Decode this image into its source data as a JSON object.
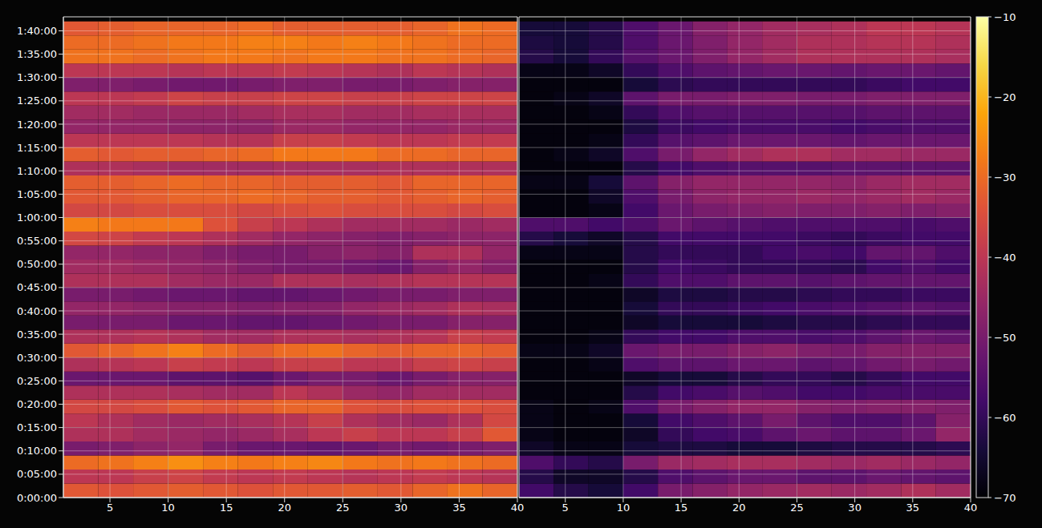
{
  "chart_data": [
    {
      "type": "heatmap",
      "grid": true,
      "xlim": [
        1,
        40
      ],
      "xticks": [
        5,
        10,
        15,
        20,
        25,
        30,
        35,
        40
      ],
      "ylim": [
        0,
        6180
      ],
      "yticks": [
        {
          "value": 0,
          "label": "0:00:00"
        },
        {
          "value": 300,
          "label": "0:05:00"
        },
        {
          "value": 600,
          "label": "0:10:00"
        },
        {
          "value": 900,
          "label": "0:15:00"
        },
        {
          "value": 1200,
          "label": "0:20:00"
        },
        {
          "value": 1500,
          "label": "0:25:00"
        },
        {
          "value": 1800,
          "label": "0:30:00"
        },
        {
          "value": 2100,
          "label": "0:35:00"
        },
        {
          "value": 2400,
          "label": "0:40:00"
        },
        {
          "value": 2700,
          "label": "0:45:00"
        },
        {
          "value": 3000,
          "label": "0:50:00"
        },
        {
          "value": 3300,
          "label": "0:55:00"
        },
        {
          "value": 3600,
          "label": "1:00:00"
        },
        {
          "value": 3900,
          "label": "1:05:00"
        },
        {
          "value": 4200,
          "label": "1:10:00"
        },
        {
          "value": 4500,
          "label": "1:15:00"
        },
        {
          "value": 4800,
          "label": "1:20:00"
        },
        {
          "value": 5100,
          "label": "1:25:00"
        },
        {
          "value": 5400,
          "label": "1:30:00"
        },
        {
          "value": 5700,
          "label": "1:35:00"
        },
        {
          "value": 6000,
          "label": "1:40:00"
        }
      ],
      "x_bins": [
        1,
        4,
        7,
        10,
        13,
        16,
        19,
        22,
        25,
        28,
        31,
        34,
        37,
        40
      ],
      "y_bins": [
        0,
        180,
        360,
        540,
        720,
        900,
        1080,
        1260,
        1440,
        1620,
        1800,
        1980,
        2160,
        2340,
        2520,
        2700,
        2880,
        3060,
        3240,
        3420,
        3600,
        3780,
        3960,
        4140,
        4320,
        4500,
        4680,
        4860,
        5040,
        5220,
        5400,
        5580,
        5760,
        5940,
        6120
      ],
      "cells": [
        [
          -33,
          -34,
          -33,
          -32,
          -33,
          -34,
          -33,
          -33,
          -32,
          -33,
          -31,
          -29,
          -31
        ],
        [
          -40,
          -40,
          -38,
          -37,
          -39,
          -40,
          -39,
          -40,
          -41,
          -40,
          -39,
          -40,
          -41
        ],
        [
          -30,
          -29,
          -27,
          -25,
          -27,
          -28,
          -27,
          -26,
          -28,
          -29,
          -28,
          -29,
          -30
        ],
        [
          -50,
          -49,
          -47,
          -46,
          -50,
          -52,
          -52,
          -53,
          -52,
          -50,
          -51,
          -50,
          -49
        ],
        [
          -42,
          -42,
          -44,
          -45,
          -46,
          -45,
          -43,
          -40,
          -38,
          -40,
          -40,
          -38,
          -33
        ],
        [
          -40,
          -42,
          -44,
          -45,
          -44,
          -43,
          -41,
          -38,
          -42,
          -44,
          -45,
          -42,
          -36
        ],
        [
          -36,
          -36,
          -35,
          -33,
          -34,
          -33,
          -31,
          -31,
          -34,
          -35,
          -34,
          -34,
          -35
        ],
        [
          -42,
          -42,
          -42,
          -43,
          -44,
          -44,
          -40,
          -42,
          -45,
          -46,
          -44,
          -44,
          -44
        ],
        [
          -52,
          -52,
          -52,
          -54,
          -54,
          -55,
          -52,
          -50,
          -50,
          -52,
          -50,
          -48,
          -48
        ],
        [
          -42,
          -41,
          -40,
          -38,
          -39,
          -40,
          -38,
          -38,
          -40,
          -40,
          -38,
          -37,
          -38
        ],
        [
          -33,
          -31,
          -29,
          -27,
          -30,
          -32,
          -30,
          -29,
          -31,
          -32,
          -31,
          -31,
          -32
        ],
        [
          -42,
          -42,
          -41,
          -42,
          -44,
          -44,
          -42,
          -42,
          -43,
          -42,
          -41,
          -38,
          -39
        ],
        [
          -50,
          -50,
          -50,
          -52,
          -52,
          -53,
          -53,
          -52,
          -51,
          -50,
          -50,
          -48,
          -48
        ],
        [
          -46,
          -46,
          -47,
          -48,
          -48,
          -49,
          -48,
          -48,
          -46,
          -45,
          -44,
          -42,
          -43
        ],
        [
          -50,
          -50,
          -51,
          -52,
          -52,
          -53,
          -53,
          -52,
          -51,
          -50,
          -50,
          -49,
          -49
        ],
        [
          -42,
          -42,
          -42,
          -44,
          -45,
          -45,
          -42,
          -42,
          -43,
          -42,
          -41,
          -41,
          -41
        ],
        [
          -44,
          -44,
          -45,
          -46,
          -47,
          -49,
          -50,
          -50,
          -51,
          -52,
          -48,
          -46,
          -48
        ],
        [
          -46,
          -46,
          -47,
          -47,
          -49,
          -50,
          -50,
          -48,
          -47,
          -48,
          -42,
          -42,
          -46
        ],
        [
          -36,
          -37,
          -39,
          -40,
          -42,
          -44,
          -46,
          -47,
          -48,
          -49,
          -48,
          -47,
          -47
        ],
        [
          -27,
          -28,
          -28,
          -28,
          -34,
          -38,
          -40,
          -42,
          -44,
          -44,
          -44,
          -45,
          -44
        ],
        [
          -36,
          -36,
          -35,
          -35,
          -35,
          -36,
          -35,
          -34,
          -35,
          -35,
          -35,
          -36,
          -35
        ],
        [
          -33,
          -33,
          -32,
          -31,
          -31,
          -30,
          -31,
          -32,
          -32,
          -33,
          -32,
          -31,
          -32
        ],
        [
          -32,
          -32,
          -31,
          -30,
          -31,
          -31,
          -32,
          -32,
          -32,
          -33,
          -31,
          -31,
          -31
        ],
        [
          -42,
          -42,
          -43,
          -44,
          -44,
          -44,
          -43,
          -43,
          -43,
          -42,
          -42,
          -42,
          -42
        ],
        [
          -32,
          -33,
          -32,
          -32,
          -31,
          -30,
          -28,
          -28,
          -28,
          -30,
          -30,
          -31,
          -31
        ],
        [
          -40,
          -40,
          -40,
          -40,
          -41,
          -41,
          -38,
          -38,
          -39,
          -40,
          -40,
          -39,
          -39
        ],
        [
          -46,
          -46,
          -46,
          -47,
          -47,
          -47,
          -45,
          -45,
          -46,
          -46,
          -46,
          -45,
          -45
        ],
        [
          -44,
          -44,
          -45,
          -45,
          -45,
          -44,
          -43,
          -43,
          -44,
          -44,
          -43,
          -43,
          -43
        ],
        [
          -40,
          -40,
          -39,
          -37,
          -38,
          -38,
          -37,
          -37,
          -38,
          -38,
          -37,
          -37,
          -37
        ],
        [
          -49,
          -49,
          -50,
          -51,
          -51,
          -50,
          -49,
          -49,
          -50,
          -50,
          -49,
          -48,
          -48
        ],
        [
          -40,
          -40,
          -40,
          -41,
          -40,
          -40,
          -39,
          -40,
          -41,
          -42,
          -40,
          -41,
          -42
        ],
        [
          -29,
          -29,
          -30,
          -29,
          -28,
          -28,
          -29,
          -28,
          -28,
          -29,
          -29,
          -30,
          -31
        ],
        [
          -30,
          -30,
          -29,
          -28,
          -28,
          -27,
          -27,
          -28,
          -27,
          -28,
          -29,
          -30,
          -30
        ],
        [
          -33,
          -32,
          -31,
          -31,
          -31,
          -30,
          -32,
          -32,
          -32,
          -32,
          -31,
          -29,
          -30
        ]
      ]
    },
    {
      "type": "heatmap",
      "grid": true,
      "tick_labels": "x",
      "xlim": [
        1,
        40
      ],
      "xticks": [
        5,
        10,
        15,
        20,
        25,
        30,
        35,
        40
      ],
      "ylim": [
        0,
        6180
      ],
      "yticks": [
        0,
        300,
        600,
        900,
        1200,
        1500,
        1800,
        2100,
        2400,
        2700,
        3000,
        3300,
        3600,
        3900,
        4200,
        4500,
        4800,
        5100,
        5400,
        5700,
        6000
      ],
      "x_bins": [
        1,
        4,
        7,
        10,
        13,
        16,
        19,
        22,
        25,
        28,
        31,
        34,
        37,
        40
      ],
      "y_bins": [
        0,
        180,
        360,
        540,
        720,
        900,
        1080,
        1260,
        1440,
        1620,
        1800,
        1980,
        2160,
        2340,
        2520,
        2700,
        2880,
        3060,
        3240,
        3420,
        3600,
        3780,
        3960,
        4140,
        4320,
        4500,
        4680,
        4860,
        5040,
        5220,
        5400,
        5580,
        5760,
        5940,
        6120
      ],
      "cells": [
        [
          -58,
          -62,
          -64,
          -58,
          -50,
          -48,
          -46,
          -45,
          -44,
          -45,
          -44,
          -42,
          -44
        ],
        [
          -62,
          -66,
          -66,
          -62,
          -56,
          -54,
          -52,
          -52,
          -54,
          -54,
          -52,
          -53,
          -54
        ],
        [
          -56,
          -60,
          -62,
          -50,
          -45,
          -44,
          -43,
          -43,
          -44,
          -45,
          -44,
          -45,
          -46
        ],
        [
          -66,
          -68,
          -68,
          -64,
          -63,
          -63,
          -64,
          -64,
          -63,
          -62,
          -62,
          -62,
          -61
        ],
        [
          -68,
          -69,
          -69,
          -66,
          -60,
          -58,
          -57,
          -54,
          -52,
          -54,
          -54,
          -52,
          -46
        ],
        [
          -68,
          -69,
          -69,
          -64,
          -58,
          -56,
          -54,
          -50,
          -54,
          -56,
          -56,
          -54,
          -48
        ],
        [
          -68,
          -69,
          -68,
          -56,
          -50,
          -48,
          -46,
          -46,
          -48,
          -49,
          -48,
          -48,
          -49
        ],
        [
          -69,
          -69,
          -69,
          -62,
          -58,
          -57,
          -55,
          -56,
          -58,
          -58,
          -57,
          -57,
          -57
        ],
        [
          -69,
          -69,
          -69,
          -66,
          -64,
          -64,
          -62,
          -60,
          -60,
          -62,
          -60,
          -58,
          -58
        ],
        [
          -69,
          -69,
          -68,
          -56,
          -54,
          -54,
          -52,
          -52,
          -54,
          -53,
          -51,
          -50,
          -51
        ],
        [
          -68,
          -68,
          -66,
          -52,
          -50,
          -50,
          -48,
          -47,
          -49,
          -50,
          -48,
          -48,
          -48
        ],
        [
          -69,
          -69,
          -68,
          -60,
          -58,
          -58,
          -56,
          -56,
          -57,
          -56,
          -54,
          -52,
          -53
        ],
        [
          -69,
          -69,
          -69,
          -66,
          -64,
          -64,
          -64,
          -63,
          -62,
          -62,
          -61,
          -60,
          -60
        ],
        [
          -69,
          -69,
          -69,
          -64,
          -60,
          -60,
          -59,
          -58,
          -57,
          -56,
          -55,
          -54,
          -55
        ],
        [
          -69,
          -69,
          -69,
          -66,
          -63,
          -63,
          -62,
          -62,
          -61,
          -60,
          -60,
          -59,
          -59
        ],
        [
          -69,
          -69,
          -68,
          -60,
          -56,
          -56,
          -54,
          -54,
          -55,
          -54,
          -53,
          -53,
          -53
        ],
        [
          -69,
          -69,
          -69,
          -62,
          -58,
          -59,
          -60,
          -60,
          -60,
          -61,
          -58,
          -56,
          -58
        ],
        [
          -68,
          -68,
          -68,
          -62,
          -60,
          -60,
          -60,
          -58,
          -57,
          -58,
          -53,
          -53,
          -56
        ],
        [
          -62,
          -64,
          -66,
          -62,
          -58,
          -58,
          -58,
          -58,
          -59,
          -60,
          -59,
          -58,
          -58
        ],
        [
          -56,
          -56,
          -58,
          -56,
          -52,
          -54,
          -55,
          -56,
          -56,
          -56,
          -56,
          -57,
          -56
        ],
        [
          -69,
          -69,
          -68,
          -58,
          -52,
          -50,
          -49,
          -48,
          -49,
          -49,
          -48,
          -49,
          -48
        ],
        [
          -69,
          -69,
          -66,
          -56,
          -50,
          -47,
          -46,
          -46,
          -45,
          -46,
          -45,
          -44,
          -45
        ],
        [
          -68,
          -68,
          -64,
          -54,
          -48,
          -46,
          -46,
          -46,
          -46,
          -47,
          -45,
          -44,
          -44
        ],
        [
          -69,
          -69,
          -69,
          -62,
          -58,
          -56,
          -55,
          -55,
          -55,
          -54,
          -54,
          -54,
          -54
        ],
        [
          -69,
          -68,
          -66,
          -56,
          -50,
          -46,
          -44,
          -42,
          -42,
          -44,
          -44,
          -45,
          -45
        ],
        [
          -69,
          -69,
          -68,
          -60,
          -55,
          -54,
          -52,
          -52,
          -52,
          -53,
          -52,
          -52,
          -52
        ],
        [
          -69,
          -69,
          -69,
          -63,
          -59,
          -58,
          -57,
          -57,
          -57,
          -58,
          -57,
          -56,
          -56
        ],
        [
          -69,
          -69,
          -68,
          -60,
          -56,
          -55,
          -55,
          -55,
          -55,
          -55,
          -54,
          -54,
          -54
        ],
        [
          -69,
          -68,
          -66,
          -54,
          -50,
          -50,
          -49,
          -49,
          -50,
          -50,
          -49,
          -49,
          -49
        ],
        [
          -69,
          -69,
          -69,
          -64,
          -61,
          -60,
          -60,
          -60,
          -60,
          -60,
          -59,
          -58,
          -58
        ],
        [
          -68,
          -68,
          -66,
          -60,
          -56,
          -54,
          -53,
          -52,
          -52,
          -53,
          -52,
          -52,
          -53
        ],
        [
          -62,
          -64,
          -60,
          -55,
          -52,
          -49,
          -46,
          -44,
          -42,
          -42,
          -42,
          -42,
          -43
        ],
        [
          -63,
          -64,
          -62,
          -56,
          -52,
          -49,
          -46,
          -44,
          -42,
          -42,
          -41,
          -41,
          -42
        ],
        [
          -64,
          -64,
          -62,
          -56,
          -52,
          -48,
          -46,
          -44,
          -43,
          -42,
          -40,
          -40,
          -41
        ]
      ]
    }
  ],
  "colorbar": {
    "range": [
      -70,
      -10
    ],
    "ticks": [
      {
        "value": -70,
        "label": "−70"
      },
      {
        "value": -60,
        "label": "−60"
      },
      {
        "value": -50,
        "label": "−50"
      },
      {
        "value": -40,
        "label": "−40"
      },
      {
        "value": -30,
        "label": "−30"
      },
      {
        "value": -20,
        "label": "−20"
      },
      {
        "value": -10,
        "label": "−10"
      }
    ]
  }
}
